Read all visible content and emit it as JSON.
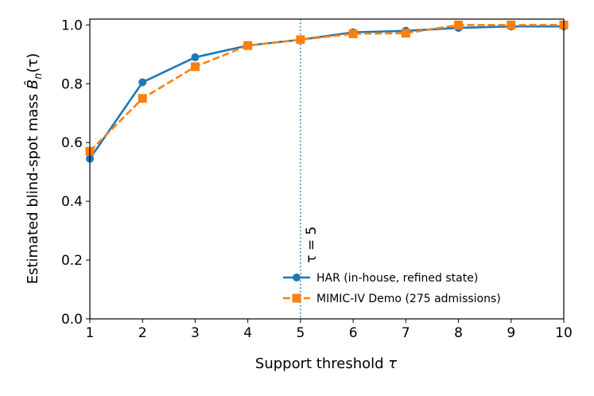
{
  "chart_data": {
    "type": "line",
    "xlabel_text": "Support threshold ",
    "xlabel_symbol": "τ",
    "ylabel_text": "Estimated blind-spot mass ",
    "ylabel_symbol": "B̂",
    "ylabel_sub": "n",
    "ylabel_arg": "(τ)",
    "x": [
      1,
      2,
      3,
      4,
      5,
      6,
      7,
      8,
      9,
      10
    ],
    "xlim": [
      1,
      10
    ],
    "ylim": [
      0.0,
      1.02
    ],
    "xticks": [
      "1",
      "2",
      "3",
      "4",
      "5",
      "6",
      "7",
      "8",
      "9",
      "10"
    ],
    "yticks": [
      "0.0",
      "0.2",
      "0.4",
      "0.6",
      "0.8",
      "1.0"
    ],
    "grid": false,
    "legend_position": "lower-right",
    "series": [
      {
        "name": "HAR (in-house, refined state)",
        "values": [
          0.545,
          0.805,
          0.89,
          0.93,
          0.95,
          0.975,
          0.98,
          0.99,
          0.995,
          0.995
        ],
        "color": "#1f77b4",
        "line_style": "solid",
        "marker": "circle"
      },
      {
        "name": "MIMIC-IV Demo (275 admissions)",
        "values": [
          0.57,
          0.75,
          0.858,
          0.93,
          0.95,
          0.97,
          0.972,
          1.0,
          1.0,
          1.0
        ],
        "color": "#ff7f0e",
        "line_style": "dashed",
        "marker": "square"
      }
    ],
    "threshold_line": {
      "x": 5,
      "label": "τ = 5",
      "color": "#1f77b4",
      "style": "dotted"
    }
  }
}
